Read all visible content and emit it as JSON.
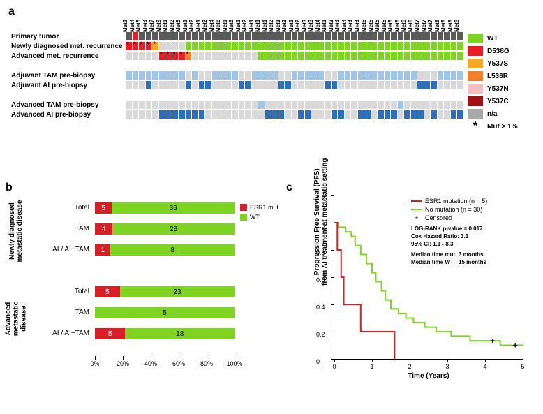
{
  "colors": {
    "WT": "#7fd321",
    "D538G": "#ed1c24",
    "Y537S": "#f7a824",
    "L536R": "#f57f28",
    "Y537N": "#f5bfbf",
    "Y537C": "#a30f12",
    "na": "#a9a9a9",
    "dark": "#595959",
    "lightblue": "#9fc5e8",
    "blue": "#2c6fbb",
    "grey": "#d9d9d9",
    "bar_red": "#d61f26",
    "bar_green": "#7fd321"
  },
  "panelA": {
    "column_labels": [
      "Met3",
      "Met4",
      "Met5",
      "Met4",
      "Met7",
      "Met9",
      "Met1",
      "Met2",
      "Met5",
      "Met1",
      "Met2",
      "Met1",
      "Met2",
      "Met4",
      "Met8",
      "Met1",
      "Met6",
      "Met1",
      "Met2",
      "Met1",
      "Met1",
      "Met1",
      "Met2",
      "Met1",
      "Met2",
      "Met1",
      "Met2",
      "Met3",
      "Met3",
      "Met4",
      "Met1",
      "Met2",
      "Met4",
      "Met4",
      "Met4",
      "Met4",
      "Met5",
      "Met5",
      "Met5",
      "Met5",
      "Met5",
      "Met5",
      "Met6",
      "Met6",
      "Met7",
      "Met7",
      "Met7",
      "Met8",
      "Met8",
      "Met8",
      "Met8"
    ],
    "row_labels": [
      "Primary tumor",
      "Newly diagnosed met. recurrence",
      "Advanced met. recurrence",
      "Adjuvant TAM pre-biopsy",
      "Adjuvant AI pre-biopsy",
      "Advanced TAM pre-biopsy",
      "Advanced AI pre-biopsy"
    ],
    "rows": [
      [
        "dark",
        "D538G",
        "dark",
        "dark",
        "dark",
        "dark",
        "dark",
        "dark",
        "dark",
        "dark",
        "dark",
        "dark",
        "dark",
        "dark",
        "dark",
        "dark",
        "dark",
        "dark",
        "dark",
        "dark",
        "dark",
        "dark",
        "dark",
        "dark",
        "dark",
        "dark",
        "dark",
        "dark",
        "dark",
        "dark",
        "dark",
        "dark",
        "dark",
        "dark",
        "dark",
        "dark",
        "dark",
        "dark",
        "dark",
        "dark",
        "dark",
        "dark",
        "dark",
        "dark",
        "dark",
        "dark",
        "dark",
        "dark",
        "dark",
        "dark",
        "dark"
      ],
      [
        "D538G",
        "D538G",
        "D538G",
        "D538G",
        "Y537S",
        "grey",
        "grey",
        "grey",
        "grey",
        "WT",
        "WT",
        "WT",
        "WT",
        "WT",
        "WT",
        "WT",
        "WT",
        "WT",
        "WT",
        "WT",
        "WT",
        "WT",
        "WT",
        "WT",
        "WT",
        "WT",
        "WT",
        "WT",
        "WT",
        "WT",
        "WT",
        "WT",
        "WT",
        "WT",
        "WT",
        "WT",
        "WT",
        "WT",
        "WT",
        "WT",
        "WT",
        "WT",
        "WT",
        "WT",
        "WT",
        "WT",
        "WT",
        "WT",
        "WT",
        "WT",
        "WT"
      ],
      [
        "grey",
        "grey",
        "grey",
        "grey",
        "grey",
        "D538G",
        "D538G",
        "D538G",
        "D538G",
        "L536R",
        "grey",
        "grey",
        "grey",
        "grey",
        "grey",
        "grey",
        "grey",
        "grey",
        "grey",
        "grey",
        "WT",
        "WT",
        "WT",
        "WT",
        "WT",
        "WT",
        "WT",
        "WT",
        "WT",
        "WT",
        "WT",
        "WT",
        "WT",
        "WT",
        "WT",
        "WT",
        "WT",
        "WT",
        "WT",
        "WT",
        "WT",
        "WT",
        "WT",
        "WT",
        "WT",
        "WT",
        "WT",
        "WT",
        "WT",
        "WT",
        "WT"
      ],
      [
        "lightblue",
        "lightblue",
        "lightblue",
        "lightblue",
        "lightblue",
        "lightblue",
        "lightblue",
        "lightblue",
        "lightblue",
        "grey",
        "lightblue",
        "grey",
        "grey",
        "lightblue",
        "lightblue",
        "lightblue",
        "lightblue",
        "grey",
        "grey",
        "lightblue",
        "lightblue",
        "lightblue",
        "lightblue",
        "grey",
        "grey",
        "lightblue",
        "lightblue",
        "lightblue",
        "lightblue",
        "lightblue",
        "grey",
        "grey",
        "lightblue",
        "lightblue",
        "lightblue",
        "lightblue",
        "lightblue",
        "lightblue",
        "lightblue",
        "lightblue",
        "lightblue",
        "lightblue",
        "lightblue",
        "lightblue",
        "grey",
        "grey",
        "grey",
        "lightblue",
        "lightblue",
        "lightblue",
        "lightblue"
      ],
      [
        "grey",
        "grey",
        "grey",
        "blue",
        "grey",
        "grey",
        "grey",
        "grey",
        "grey",
        "blue",
        "grey",
        "blue",
        "blue",
        "grey",
        "grey",
        "grey",
        "grey",
        "blue",
        "blue",
        "grey",
        "grey",
        "grey",
        "grey",
        "blue",
        "blue",
        "grey",
        "grey",
        "grey",
        "grey",
        "grey",
        "blue",
        "blue",
        "grey",
        "grey",
        "grey",
        "grey",
        "grey",
        "grey",
        "grey",
        "grey",
        "grey",
        "grey",
        "grey",
        "grey",
        "blue",
        "blue",
        "blue",
        "grey",
        "grey",
        "grey",
        "grey"
      ],
      [
        "grey",
        "grey",
        "grey",
        "grey",
        "grey",
        "grey",
        "grey",
        "grey",
        "grey",
        "grey",
        "grey",
        "grey",
        "grey",
        "grey",
        "grey",
        "grey",
        "grey",
        "grey",
        "grey",
        "grey",
        "lightblue",
        "grey",
        "grey",
        "grey",
        "grey",
        "grey",
        "grey",
        "grey",
        "grey",
        "grey",
        "grey",
        "grey",
        "grey",
        "grey",
        "grey",
        "grey",
        "grey",
        "grey",
        "grey",
        "grey",
        "grey",
        "lightblue",
        "grey",
        "grey",
        "grey",
        "grey",
        "grey",
        "grey",
        "grey",
        "grey",
        "grey"
      ],
      [
        "grey",
        "grey",
        "grey",
        "grey",
        "grey",
        "blue",
        "blue",
        "blue",
        "blue",
        "blue",
        "blue",
        "blue",
        "grey",
        "grey",
        "grey",
        "grey",
        "grey",
        "grey",
        "grey",
        "grey",
        "grey",
        "blue",
        "blue",
        "blue",
        "grey",
        "grey",
        "blue",
        "blue",
        "grey",
        "grey",
        "grey",
        "blue",
        "blue",
        "grey",
        "grey",
        "blue",
        "blue",
        "grey",
        "blue",
        "blue",
        "blue",
        "grey",
        "blue",
        "blue",
        "blue",
        "grey",
        "blue",
        "grey",
        "grey",
        "blue",
        "blue"
      ]
    ],
    "stars": {
      "1": [
        0,
        1,
        2,
        3,
        4
      ],
      "2": [
        5,
        6,
        7,
        8,
        9
      ]
    },
    "gaps_after_row": [
      2,
      4
    ],
    "legend": [
      {
        "label": "WT",
        "color": "WT"
      },
      {
        "label": "D538G",
        "color": "D538G"
      },
      {
        "label": "Y537S",
        "color": "Y537S"
      },
      {
        "label": "L536R",
        "color": "L536R"
      },
      {
        "label": "Y537N",
        "color": "Y537N"
      },
      {
        "label": "Y537C",
        "color": "Y537C"
      },
      {
        "label": "n/a",
        "color": "na"
      }
    ],
    "star_note": "Mut > 1%"
  },
  "panelB": {
    "groups": [
      {
        "label": "Newly diagnosed\nmetastatic disease",
        "bars": [
          {
            "label": "Total",
            "mut": 5,
            "wt": 36
          },
          {
            "label": "TAM",
            "mut": 4,
            "wt": 28
          },
          {
            "label": "AI / AI+TAM",
            "mut": 1,
            "wt": 8
          }
        ]
      },
      {
        "label": "Advanced metastatic\ndisease",
        "bars": [
          {
            "label": "Total",
            "mut": 5,
            "wt": 23
          },
          {
            "label": "TAM",
            "mut": 0,
            "wt": 5
          },
          {
            "label": "AI / AI+TAM",
            "mut": 5,
            "wt": 18
          }
        ]
      }
    ],
    "xticks": [
      0,
      20,
      40,
      60,
      80,
      100
    ],
    "legend": [
      {
        "label": "ESR1 mut",
        "color": "bar_red"
      },
      {
        "label": "WT",
        "color": "bar_green"
      }
    ]
  },
  "panelC": {
    "ylabel": "Progression Free Survival (PFS)\nfrom AI treatment at metastatic setting",
    "xlabel": "Time (Years)",
    "xlim": [
      0,
      5
    ],
    "ylim": [
      0,
      1.2
    ],
    "yticks": [
      0,
      0.2,
      0.4,
      0.6,
      0.8,
      1.0,
      1.2
    ],
    "xticks": [
      0,
      1,
      2,
      3,
      4,
      5
    ],
    "legend": [
      {
        "label": "ESR1 mutation (n = 5)",
        "color": "bar_red",
        "type": "line"
      },
      {
        "label": "No mutation (n = 30)",
        "color": "bar_green",
        "type": "line"
      },
      {
        "label": "Censored",
        "color": "#000",
        "type": "cross"
      }
    ],
    "stats": [
      "LOG-RANK p-value = 0.017",
      "Cox Hazard Ratio: 3.1",
      "95% CI:  1.1 - 8.3",
      "",
      "Median time mut:   3 months",
      "Median time WT :  15 months"
    ],
    "mut_curve": [
      [
        0,
        1.0
      ],
      [
        0.08,
        1.0
      ],
      [
        0.08,
        0.8
      ],
      [
        0.18,
        0.8
      ],
      [
        0.18,
        0.6
      ],
      [
        0.25,
        0.6
      ],
      [
        0.25,
        0.4
      ],
      [
        0.7,
        0.4
      ],
      [
        0.7,
        0.2
      ],
      [
        1.6,
        0.2
      ],
      [
        1.6,
        0.0
      ]
    ],
    "wt_curve": [
      [
        0,
        1.0
      ],
      [
        0.1,
        1.0
      ],
      [
        0.1,
        0.967
      ],
      [
        0.3,
        0.967
      ],
      [
        0.3,
        0.933
      ],
      [
        0.45,
        0.933
      ],
      [
        0.45,
        0.9
      ],
      [
        0.55,
        0.9
      ],
      [
        0.55,
        0.833
      ],
      [
        0.7,
        0.833
      ],
      [
        0.7,
        0.767
      ],
      [
        0.85,
        0.767
      ],
      [
        0.85,
        0.7
      ],
      [
        1.0,
        0.7
      ],
      [
        1.0,
        0.633
      ],
      [
        1.1,
        0.633
      ],
      [
        1.1,
        0.567
      ],
      [
        1.25,
        0.567
      ],
      [
        1.25,
        0.5
      ],
      [
        1.35,
        0.5
      ],
      [
        1.35,
        0.433
      ],
      [
        1.5,
        0.433
      ],
      [
        1.5,
        0.367
      ],
      [
        1.7,
        0.367
      ],
      [
        1.7,
        0.333
      ],
      [
        1.9,
        0.333
      ],
      [
        1.9,
        0.3
      ],
      [
        2.1,
        0.3
      ],
      [
        2.1,
        0.267
      ],
      [
        2.4,
        0.267
      ],
      [
        2.4,
        0.233
      ],
      [
        2.7,
        0.233
      ],
      [
        2.7,
        0.2
      ],
      [
        3.1,
        0.2
      ],
      [
        3.1,
        0.167
      ],
      [
        3.6,
        0.167
      ],
      [
        3.6,
        0.133
      ],
      [
        4.4,
        0.133
      ],
      [
        4.4,
        0.1
      ],
      [
        5.0,
        0.1
      ]
    ],
    "censored": [
      [
        4.2,
        0.133
      ],
      [
        4.8,
        0.1
      ]
    ],
    "line_width": 2
  },
  "labels": {
    "a": "a",
    "b": "b",
    "c": "c"
  }
}
